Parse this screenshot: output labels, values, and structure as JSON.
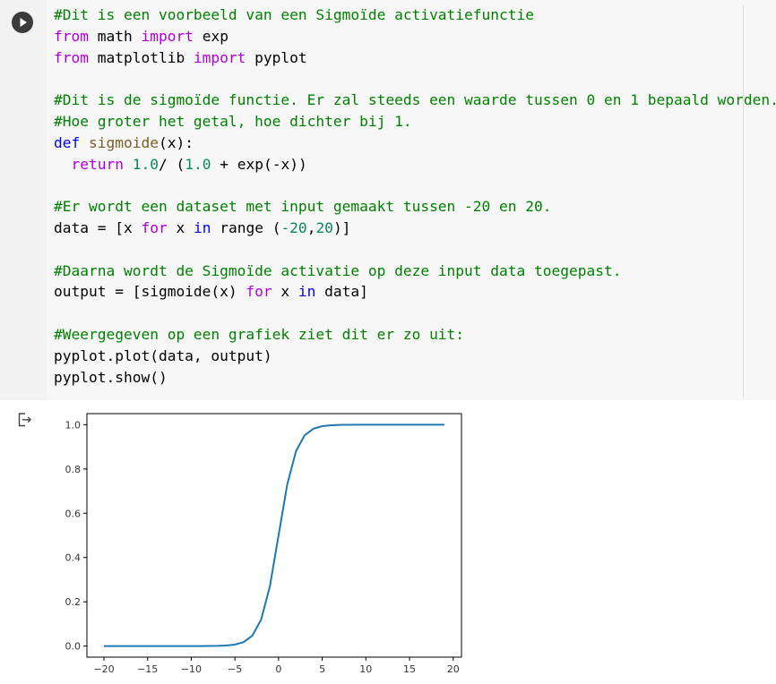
{
  "code_cell": {
    "lines": [
      [
        {
          "t": "#Dit is een voorbeeld van een Sigmoïde activatiefunctie",
          "c": "cm"
        }
      ],
      [
        {
          "t": "from",
          "c": "kw"
        },
        {
          "t": " math ",
          "c": "op"
        },
        {
          "t": "import",
          "c": "kw"
        },
        {
          "t": " exp",
          "c": "op"
        }
      ],
      [
        {
          "t": "from",
          "c": "kw"
        },
        {
          "t": " matplotlib ",
          "c": "op"
        },
        {
          "t": "import",
          "c": "kw"
        },
        {
          "t": " pyplot",
          "c": "op"
        }
      ],
      [],
      [
        {
          "t": "#Dit is de sigmoïde functie. Er zal steeds een waarde tussen 0 en 1 bepaald worden.",
          "c": "cm"
        }
      ],
      [
        {
          "t": "#Hoe groter het getal, hoe dichter bij 1.",
          "c": "cm"
        }
      ],
      [
        {
          "t": "def",
          "c": "kd"
        },
        {
          "t": " ",
          "c": "op"
        },
        {
          "t": "sigmoide",
          "c": "fn"
        },
        {
          "t": "(x):",
          "c": "op"
        }
      ],
      [
        {
          "t": "  ",
          "c": "op"
        },
        {
          "t": "return",
          "c": "kw"
        },
        {
          "t": " ",
          "c": "op"
        },
        {
          "t": "1.0",
          "c": "nm"
        },
        {
          "t": "/ (",
          "c": "op"
        },
        {
          "t": "1.0",
          "c": "nm"
        },
        {
          "t": " + exp(-x))",
          "c": "op"
        }
      ],
      [],
      [
        {
          "t": "#Er wordt een dataset met input gemaakt tussen -20 en 20.",
          "c": "cm"
        }
      ],
      [
        {
          "t": "data = [x ",
          "c": "op"
        },
        {
          "t": "for",
          "c": "kw"
        },
        {
          "t": " x ",
          "c": "op"
        },
        {
          "t": "in",
          "c": "kd"
        },
        {
          "t": " range (",
          "c": "op"
        },
        {
          "t": "-20",
          "c": "nm"
        },
        {
          "t": ",",
          "c": "op"
        },
        {
          "t": "20",
          "c": "nm"
        },
        {
          "t": ")]",
          "c": "op"
        }
      ],
      [],
      [
        {
          "t": "#Daarna wordt de Sigmoïde activatie op deze input data toegepast.",
          "c": "cm"
        }
      ],
      [
        {
          "t": "output = [sigmoide(x) ",
          "c": "op"
        },
        {
          "t": "for",
          "c": "kw"
        },
        {
          "t": " x ",
          "c": "op"
        },
        {
          "t": "in",
          "c": "kd"
        },
        {
          "t": " data]",
          "c": "op"
        }
      ],
      [],
      [
        {
          "t": "#Weergegeven op een grafiek ziet dit er zo uit:",
          "c": "cm"
        }
      ],
      [
        {
          "t": "pyplot.plot(data, output)",
          "c": "op"
        }
      ],
      [
        {
          "t": "pyplot.show()",
          "c": "op"
        }
      ]
    ]
  },
  "icons": {
    "run": "play-icon",
    "output": "output-arrow-icon"
  },
  "colors": {
    "line": "#1f77b4",
    "cell_bg": "#f7f7f7"
  },
  "chart_data": {
    "type": "line",
    "x": [
      -20,
      -19,
      -18,
      -17,
      -16,
      -15,
      -14,
      -13,
      -12,
      -11,
      -10,
      -9,
      -8,
      -7,
      -6,
      -5,
      -4,
      -3,
      -2,
      -1,
      0,
      1,
      2,
      3,
      4,
      5,
      6,
      7,
      8,
      9,
      10,
      11,
      12,
      13,
      14,
      15,
      16,
      17,
      18,
      19
    ],
    "y": [
      0.0,
      0.0,
      0.0,
      0.0,
      0.0,
      0.0,
      0.0,
      0.0,
      0.0,
      0.0,
      0.0,
      0.0001,
      0.0003,
      0.0009,
      0.0025,
      0.0067,
      0.018,
      0.0474,
      0.1192,
      0.2689,
      0.5,
      0.7311,
      0.8808,
      0.9526,
      0.982,
      0.9933,
      0.9975,
      0.9991,
      0.9997,
      0.9999,
      1.0,
      1.0,
      1.0,
      1.0,
      1.0,
      1.0,
      1.0,
      1.0,
      1.0,
      1.0
    ],
    "xlim": [
      -21.95,
      20.95
    ],
    "ylim": [
      -0.05,
      1.05
    ],
    "xticks": [
      -20,
      -15,
      -10,
      -5,
      0,
      5,
      10,
      15,
      20
    ],
    "xtick_labels": [
      "−20",
      "−15",
      "−10",
      "−5",
      "0",
      "5",
      "10",
      "15",
      "20"
    ],
    "yticks": [
      0.0,
      0.2,
      0.4,
      0.6,
      0.8,
      1.0
    ],
    "ytick_labels": [
      "0.0",
      "0.2",
      "0.4",
      "0.6",
      "0.8",
      "1.0"
    ],
    "grid": false,
    "title": "",
    "xlabel": "",
    "ylabel": ""
  }
}
